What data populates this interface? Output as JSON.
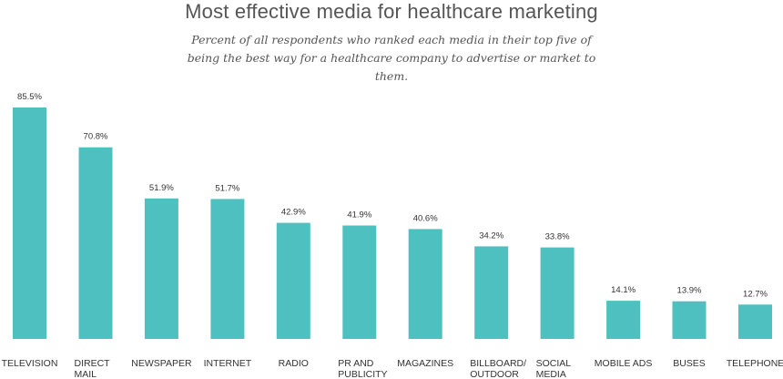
{
  "title": "Most effective media for healthcare marketing",
  "subtitle": "Percent of all respondents who ranked each media in their top five of being the best way for a healthcare company to advertise or market to them.",
  "colors": {
    "bar": "#4fc0c0",
    "text": "#333333",
    "title": "#555555"
  },
  "chart_data": {
    "type": "bar",
    "title": "Most effective media for healthcare marketing",
    "subtitle": "Percent of all respondents who ranked each media in their top five of being the best way for a healthcare company to advertise or market to them.",
    "categories": [
      "TELEVISION",
      "DIRECT MAIL",
      "NEWSPAPER",
      "INTERNET",
      "RADIO",
      "PR AND PUBLICITY",
      "MAGAZINES",
      "BILLBOARD/ OUTDOOR",
      "SOCIAL MEDIA",
      "MOBILE ADS",
      "BUSES",
      "TELEPHONE"
    ],
    "category_lines": [
      [
        "TELEVISION"
      ],
      [
        "DIRECT",
        "MAIL"
      ],
      [
        "NEWSPAPER"
      ],
      [
        "INTERNET"
      ],
      [
        "RADIO"
      ],
      [
        "PR AND",
        "PUBLICITY"
      ],
      [
        "MAGAZINES"
      ],
      [
        "BILLBOARD/",
        "OUTDOOR"
      ],
      [
        "SOCIAL",
        "MEDIA"
      ],
      [
        "MOBILE ADS"
      ],
      [
        "BUSES"
      ],
      [
        "TELEPHONE"
      ]
    ],
    "values": [
      85.5,
      70.8,
      51.9,
      51.7,
      42.9,
      41.9,
      40.6,
      34.2,
      33.8,
      14.1,
      13.9,
      12.7
    ],
    "value_labels": [
      "85.5%",
      "70.8%",
      "51.9%",
      "51.7%",
      "42.9%",
      "41.9%",
      "40.6%",
      "34.2%",
      "33.8%",
      "14.1%",
      "13.9%",
      "12.7%"
    ],
    "xlabel": "",
    "ylabel": "",
    "ylim": [
      0,
      100
    ],
    "grid": false,
    "legend": "none"
  }
}
